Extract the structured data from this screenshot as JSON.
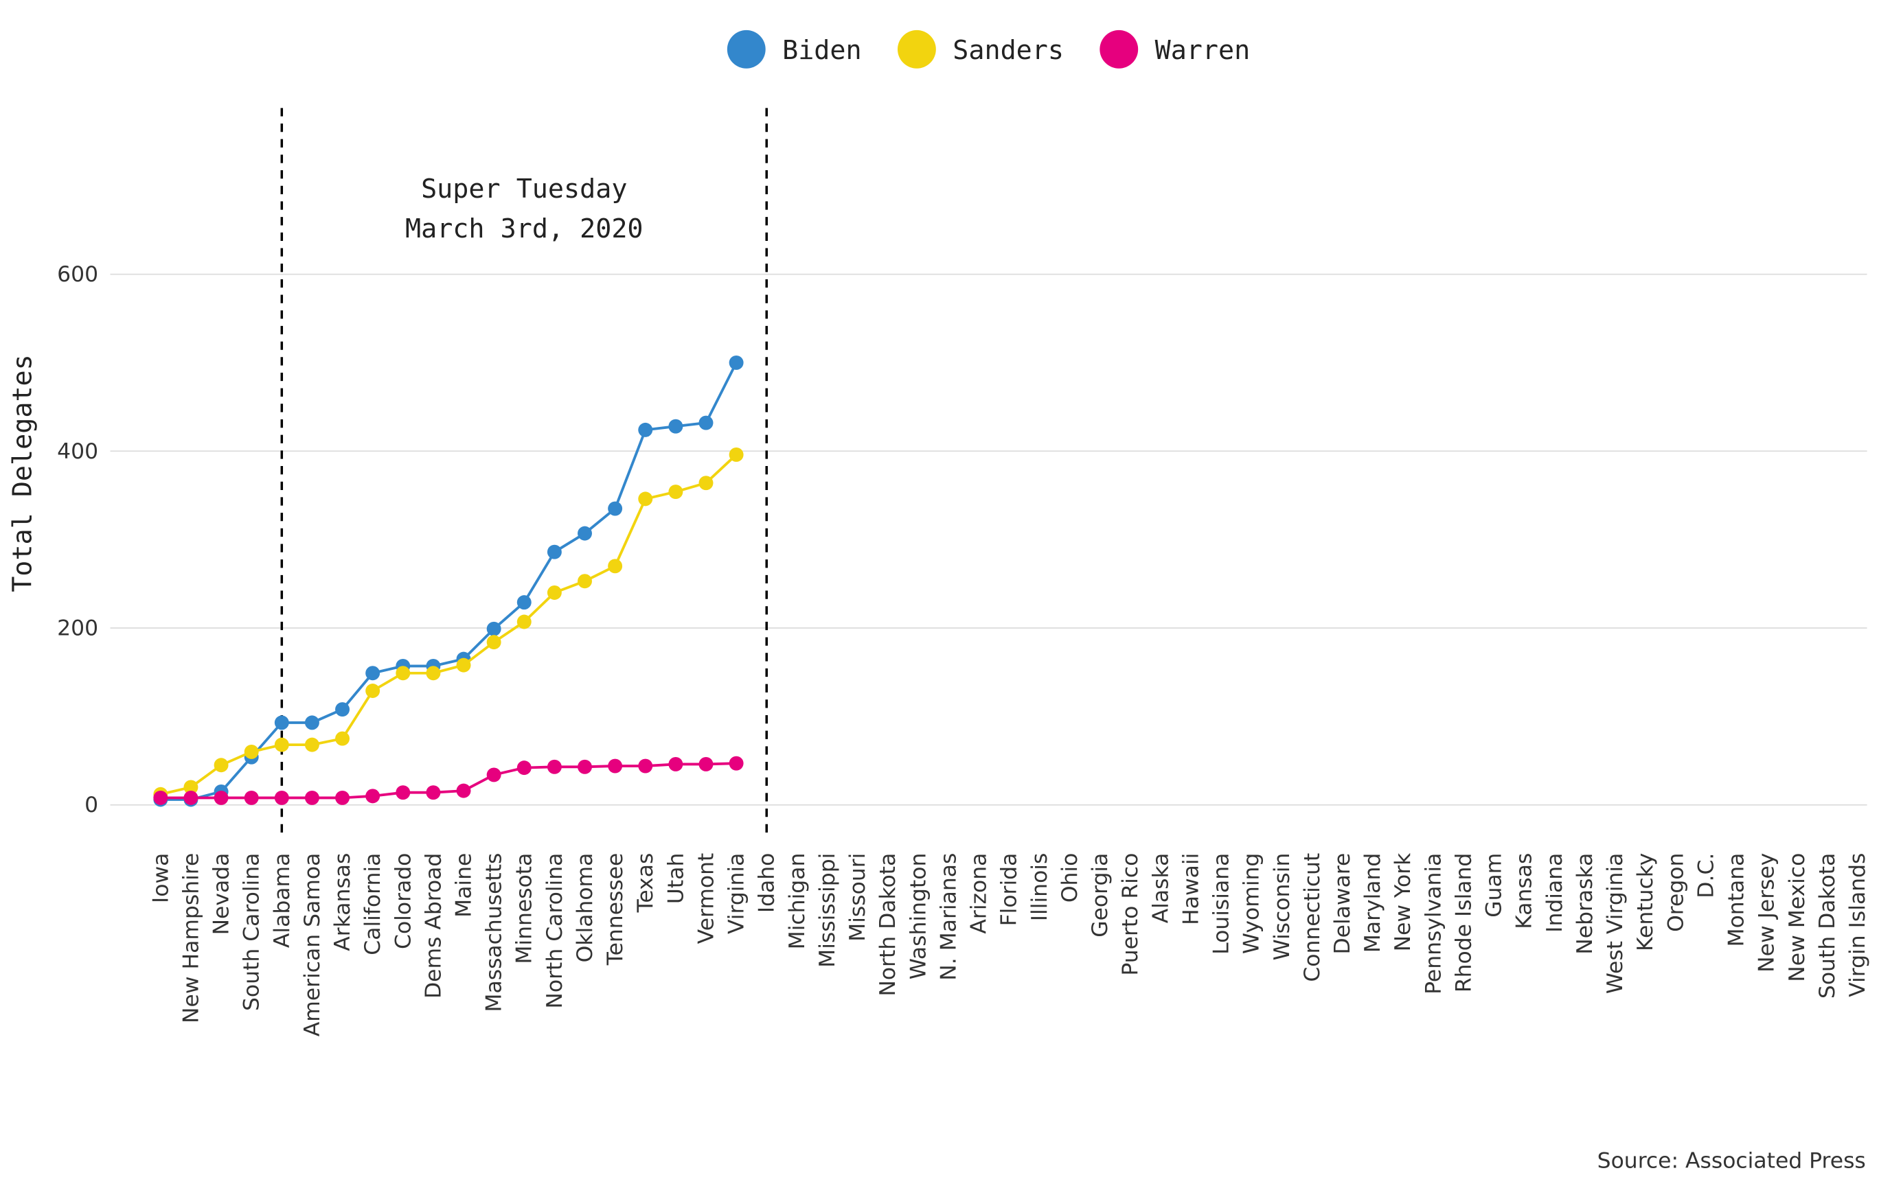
{
  "chart_data": {
    "type": "line",
    "annotation": [
      "Super Tuesday",
      "March 3rd, 2020"
    ],
    "y_label": "Total Delegates",
    "source": "Source: Associated Press",
    "vlines": [
      "Alabama",
      "Idaho"
    ],
    "categories": [
      "Iowa",
      "New Hampshire",
      "Nevada",
      "South Carolina",
      "Alabama",
      "American Samoa",
      "Arkansas",
      "California",
      "Colorado",
      "Dems Abroad",
      "Maine",
      "Massachusetts",
      "Minnesota",
      "North Carolina",
      "Oklahoma",
      "Tennessee",
      "Texas",
      "Utah",
      "Vermont",
      "Virginia",
      "Idaho",
      "Michigan",
      "Mississippi",
      "Missouri",
      "North Dakota",
      "Washington",
      "N. Marianas",
      "Arizona",
      "Florida",
      "Illinois",
      "Ohio",
      "Georgia",
      "Puerto Rico",
      "Alaska",
      "Hawaii",
      "Louisiana",
      "Wyoming",
      "Wisconsin",
      "Connecticut",
      "Delaware",
      "Maryland",
      "New York",
      "Pennsylvania",
      "Rhode Island",
      "Guam",
      "Kansas",
      "Indiana",
      "Nebraska",
      "West Virginia",
      "Kentucky",
      "Oregon",
      "D.C.",
      "Montana",
      "New Jersey",
      "New Mexico",
      "South Dakota",
      "Virgin Islands"
    ],
    "series": [
      {
        "name": "Biden",
        "color": "#3387cc",
        "values": [
          6,
          6,
          15,
          54,
          93,
          93,
          108,
          149,
          157,
          157,
          165,
          199,
          229,
          286,
          307,
          335,
          424,
          428,
          432,
          500,
          null,
          null,
          null,
          null,
          null,
          null,
          null,
          null,
          null,
          null,
          null,
          null,
          null,
          null,
          null,
          null,
          null,
          null,
          null,
          null,
          null,
          null,
          null,
          null,
          null,
          null,
          null,
          null,
          null,
          null,
          null,
          null,
          null,
          null,
          null,
          null,
          null
        ]
      },
      {
        "name": "Sanders",
        "color": "#f2d40f",
        "values": [
          12,
          20,
          45,
          60,
          68,
          68,
          75,
          129,
          149,
          149,
          158,
          184,
          207,
          240,
          253,
          270,
          346,
          354,
          364,
          396,
          null,
          null,
          null,
          null,
          null,
          null,
          null,
          null,
          null,
          null,
          null,
          null,
          null,
          null,
          null,
          null,
          null,
          null,
          null,
          null,
          null,
          null,
          null,
          null,
          null,
          null,
          null,
          null,
          null,
          null,
          null,
          null,
          null,
          null,
          null,
          null,
          null
        ]
      },
      {
        "name": "Warren",
        "color": "#e6007e",
        "values": [
          8,
          8,
          8,
          8,
          8,
          8,
          8,
          10,
          14,
          14,
          16,
          34,
          42,
          43,
          43,
          44,
          44,
          46,
          46,
          47,
          null,
          null,
          null,
          null,
          null,
          null,
          null,
          null,
          null,
          null,
          null,
          null,
          null,
          null,
          null,
          null,
          null,
          null,
          null,
          null,
          null,
          null,
          null,
          null,
          null,
          null,
          null,
          null,
          null,
          null,
          null,
          null,
          null,
          null,
          null,
          null,
          null
        ]
      }
    ],
    "ylim": [
      -38,
      788
    ],
    "yticks": [
      0,
      200,
      400,
      600
    ],
    "grid": true,
    "legend": "top"
  }
}
